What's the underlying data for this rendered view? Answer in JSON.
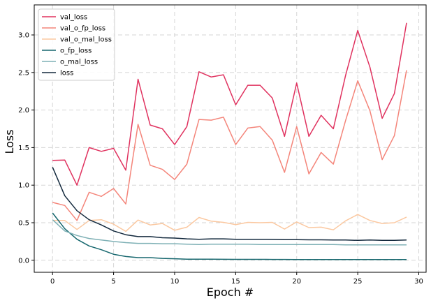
{
  "chart_data": {
    "type": "line",
    "xlabel": "Epoch #",
    "ylabel": "Loss",
    "xlim": [
      -1.5,
      30.6
    ],
    "ylim": [
      -0.16,
      3.4
    ],
    "xticks": [
      0,
      5,
      10,
      15,
      20,
      25,
      30
    ],
    "yticks": [
      0.0,
      0.5,
      1.0,
      1.5,
      2.0,
      2.5,
      3.0
    ],
    "ytick_labels": [
      "0.0",
      "0.5",
      "1.0",
      "1.5",
      "2.0",
      "2.5",
      "3.0"
    ],
    "grid": true,
    "legend_position": "top-left",
    "x": [
      0,
      1,
      2,
      3,
      4,
      5,
      6,
      7,
      8,
      9,
      10,
      11,
      12,
      13,
      14,
      15,
      16,
      17,
      18,
      19,
      20,
      21,
      22,
      23,
      24,
      25,
      26,
      27,
      28,
      29
    ],
    "series": [
      {
        "name": "val_loss",
        "color": "#e0325f",
        "values": [
          1.33,
          1.335,
          1.0,
          1.5,
          1.45,
          1.49,
          1.2,
          2.41,
          1.8,
          1.75,
          1.54,
          1.78,
          2.51,
          2.44,
          2.47,
          2.07,
          2.33,
          2.33,
          2.16,
          1.65,
          2.36,
          1.65,
          1.93,
          1.75,
          2.46,
          3.06,
          2.57,
          1.89,
          2.22,
          3.16
        ]
      },
      {
        "name": "val_o_fp_loss",
        "color": "#f4857a",
        "values": [
          0.77,
          0.73,
          0.53,
          0.905,
          0.85,
          0.955,
          0.75,
          1.81,
          1.265,
          1.21,
          1.075,
          1.28,
          1.875,
          1.865,
          1.905,
          1.54,
          1.76,
          1.78,
          1.6,
          1.17,
          1.78,
          1.15,
          1.435,
          1.28,
          1.86,
          2.39,
          1.99,
          1.34,
          1.66,
          2.53
        ]
      },
      {
        "name": "val_o_mal_loss",
        "color": "#fbc8a0",
        "values": [
          0.53,
          0.53,
          0.41,
          0.53,
          0.54,
          0.48,
          0.385,
          0.535,
          0.47,
          0.49,
          0.4,
          0.44,
          0.57,
          0.52,
          0.505,
          0.475,
          0.505,
          0.5,
          0.505,
          0.415,
          0.51,
          0.435,
          0.44,
          0.405,
          0.525,
          0.61,
          0.53,
          0.49,
          0.5,
          0.575
        ]
      },
      {
        "name": "o_fp_loss",
        "color": "#16676e",
        "values": [
          0.63,
          0.42,
          0.28,
          0.19,
          0.14,
          0.08,
          0.05,
          0.035,
          0.035,
          0.025,
          0.02,
          0.015,
          0.014,
          0.014,
          0.013,
          0.012,
          0.012,
          0.012,
          0.011,
          0.011,
          0.01,
          0.01,
          0.01,
          0.01,
          0.009,
          0.009,
          0.009,
          0.009,
          0.009,
          0.009
        ]
      },
      {
        "name": "o_mal_loss",
        "color": "#7eb0b5",
        "values": [
          0.54,
          0.39,
          0.33,
          0.29,
          0.27,
          0.25,
          0.235,
          0.225,
          0.225,
          0.22,
          0.22,
          0.215,
          0.21,
          0.215,
          0.215,
          0.215,
          0.215,
          0.21,
          0.21,
          0.21,
          0.21,
          0.21,
          0.21,
          0.21,
          0.205,
          0.205,
          0.205,
          0.205,
          0.205,
          0.205
        ]
      },
      {
        "name": "loss",
        "color": "#13293d",
        "values": [
          1.24,
          0.86,
          0.66,
          0.54,
          0.47,
          0.39,
          0.34,
          0.315,
          0.315,
          0.3,
          0.295,
          0.285,
          0.28,
          0.285,
          0.285,
          0.28,
          0.28,
          0.28,
          0.278,
          0.275,
          0.275,
          0.272,
          0.272,
          0.27,
          0.27,
          0.265,
          0.27,
          0.265,
          0.265,
          0.27
        ]
      }
    ]
  }
}
